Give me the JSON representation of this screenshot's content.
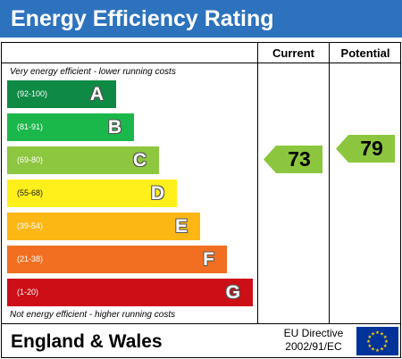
{
  "chart_data": {
    "type": "bar",
    "title": "Energy Efficiency Rating",
    "top_note": "Very energy efficient - lower running costs",
    "bottom_note": "Not energy efficient - higher running costs",
    "bands": [
      {
        "letter": "A",
        "range": "(92-100)",
        "color": "#0e8a45"
      },
      {
        "letter": "B",
        "range": "(81-91)",
        "color": "#1ab84b"
      },
      {
        "letter": "C",
        "range": "(69-80)",
        "color": "#8dc63f"
      },
      {
        "letter": "D",
        "range": "(55-68)",
        "color": "#ffef1b"
      },
      {
        "letter": "E",
        "range": "(39-54)",
        "color": "#fcb715"
      },
      {
        "letter": "F",
        "range": "(21-38)",
        "color": "#f26f21"
      },
      {
        "letter": "G",
        "range": "(1-20)",
        "color": "#cc0e16"
      }
    ],
    "columns": {
      "current": "Current",
      "potential": "Potential"
    },
    "current": {
      "value": "73",
      "band": "C"
    },
    "potential": {
      "value": "79",
      "band": "C"
    },
    "arrow_color": "#8cc63e"
  },
  "footer": {
    "region": "England & Wales",
    "directive_line1": "EU Directive",
    "directive_line2": "2002/91/EC",
    "flag": "eu-flag-icon"
  }
}
